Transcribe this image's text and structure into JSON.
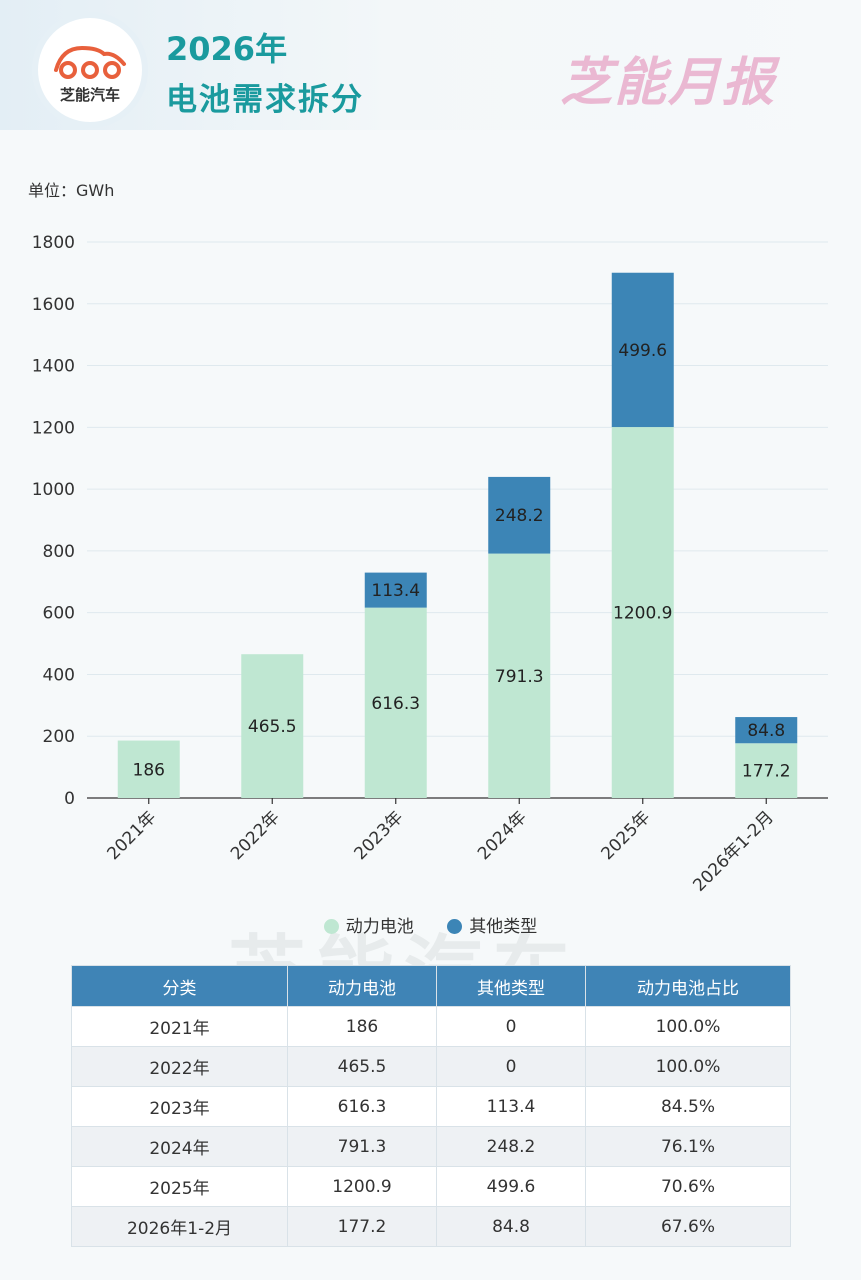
{
  "header": {
    "logo_text": "芝能汽车",
    "title_line1": "2026年",
    "title_line2": "电池需求拆分",
    "brand": "芝能月报"
  },
  "unit_label": "单位：GWh",
  "colors": {
    "power": "#bfe7d2",
    "other": "#3c85b6",
    "accent": "#1a9a9e"
  },
  "chart_data": {
    "type": "bar",
    "stacked": true,
    "categories": [
      "2021年",
      "2022年",
      "2023年",
      "2024年",
      "2025年",
      "2026年1-2月"
    ],
    "series": [
      {
        "name": "动力电池",
        "values": [
          186,
          465.5,
          616.3,
          791.3,
          1200.9,
          177.2
        ]
      },
      {
        "name": "其他类型",
        "values": [
          0,
          0,
          113.4,
          248.2,
          499.6,
          84.8
        ]
      }
    ],
    "data_labels": {
      "power": [
        "186",
        "465.5",
        "616.3",
        "791.3",
        "1200.9",
        "177.2"
      ],
      "other": [
        "",
        "",
        "113.4",
        "248.2",
        "499.6",
        "84.8"
      ]
    },
    "yticks": [
      "0",
      "200",
      "400",
      "600",
      "800",
      "1000",
      "1200",
      "1400",
      "1600",
      "1800"
    ],
    "ylim": [
      0,
      1800
    ],
    "grid": true,
    "legend_position": "bottom"
  },
  "legend": {
    "power": "动力电池",
    "other": "其他类型"
  },
  "watermark": "芝能汽车",
  "table": {
    "headers": [
      "分类",
      "动力电池",
      "其他类型",
      "动力电池占比"
    ],
    "rows": [
      [
        "2021年",
        "186",
        "0",
        "100.0%"
      ],
      [
        "2022年",
        "465.5",
        "0",
        "100.0%"
      ],
      [
        "2023年",
        "616.3",
        "113.4",
        "84.5%"
      ],
      [
        "2024年",
        "791.3",
        "248.2",
        "76.1%"
      ],
      [
        "2025年",
        "1200.9",
        "499.6",
        "70.6%"
      ],
      [
        "2026年1-2月",
        "177.2",
        "84.8",
        "67.6%"
      ]
    ]
  }
}
